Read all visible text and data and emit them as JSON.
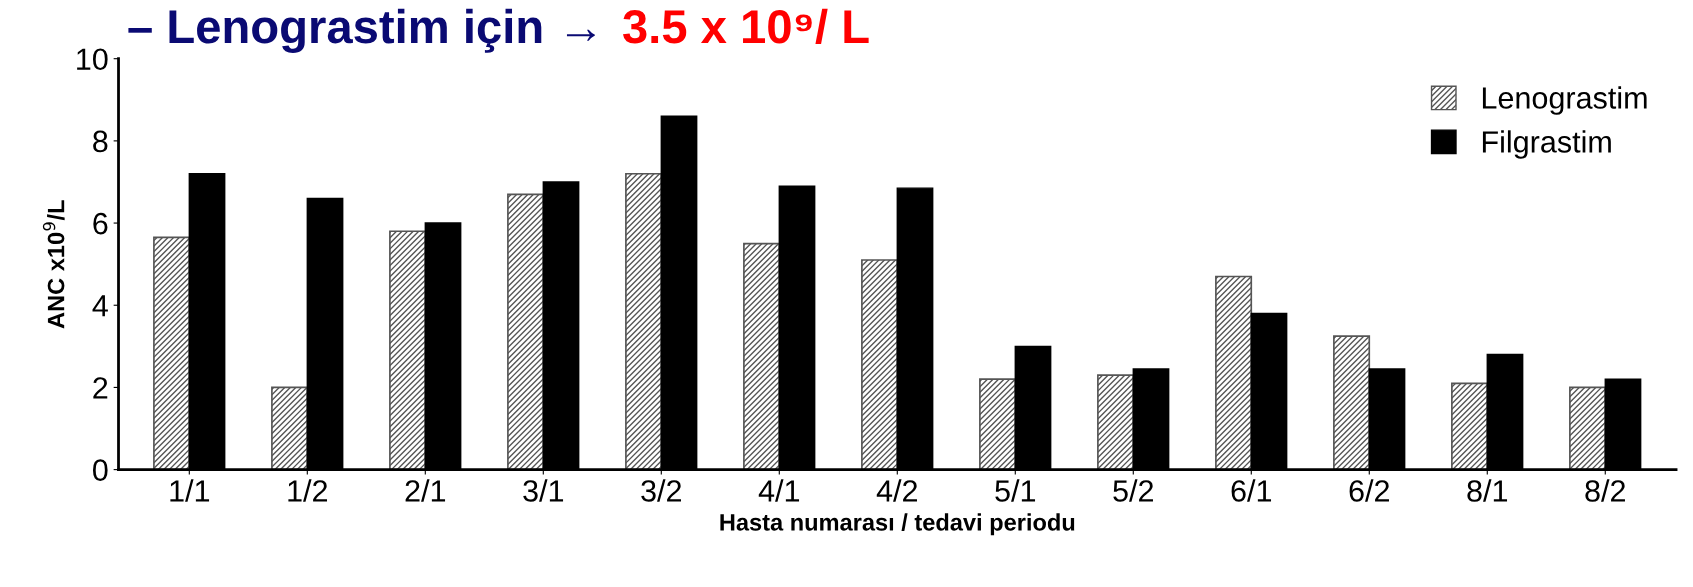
{
  "chart_data": {
    "type": "bar",
    "title": "– Lenograstim için →",
    "subtitle": "3.5 x 10⁹/ L",
    "xlabel": "Hasta numarası / tedavi periodu",
    "ylabel": "ANC x10$^{9}$/L",
    "categories": [
      "1/1",
      "1/2",
      "2/1",
      "3/1",
      "3/2",
      "4/1",
      "4/2",
      "5/1",
      "5/2",
      "6/1",
      "6/2",
      "8/1",
      "8/2"
    ],
    "series": [
      {
        "name": "Lenograstim",
        "color": "#555555",
        "values": [
          5.65,
          2.0,
          5.8,
          6.7,
          7.2,
          5.5,
          5.1,
          2.2,
          2.3,
          4.7,
          3.25,
          2.1,
          2.0
        ]
      },
      {
        "name": "Filgrastim",
        "color": "#000000",
        "values": [
          7.2,
          6.6,
          6.0,
          7.0,
          8.6,
          6.9,
          6.85,
          3.0,
          2.45,
          3.8,
          2.45,
          2.8,
          2.2
        ]
      }
    ],
    "ylim": [
      0,
      10
    ],
    "yticks": [
      0,
      2,
      4,
      6,
      8,
      10
    ],
    "grid": false,
    "legend": "top right"
  }
}
